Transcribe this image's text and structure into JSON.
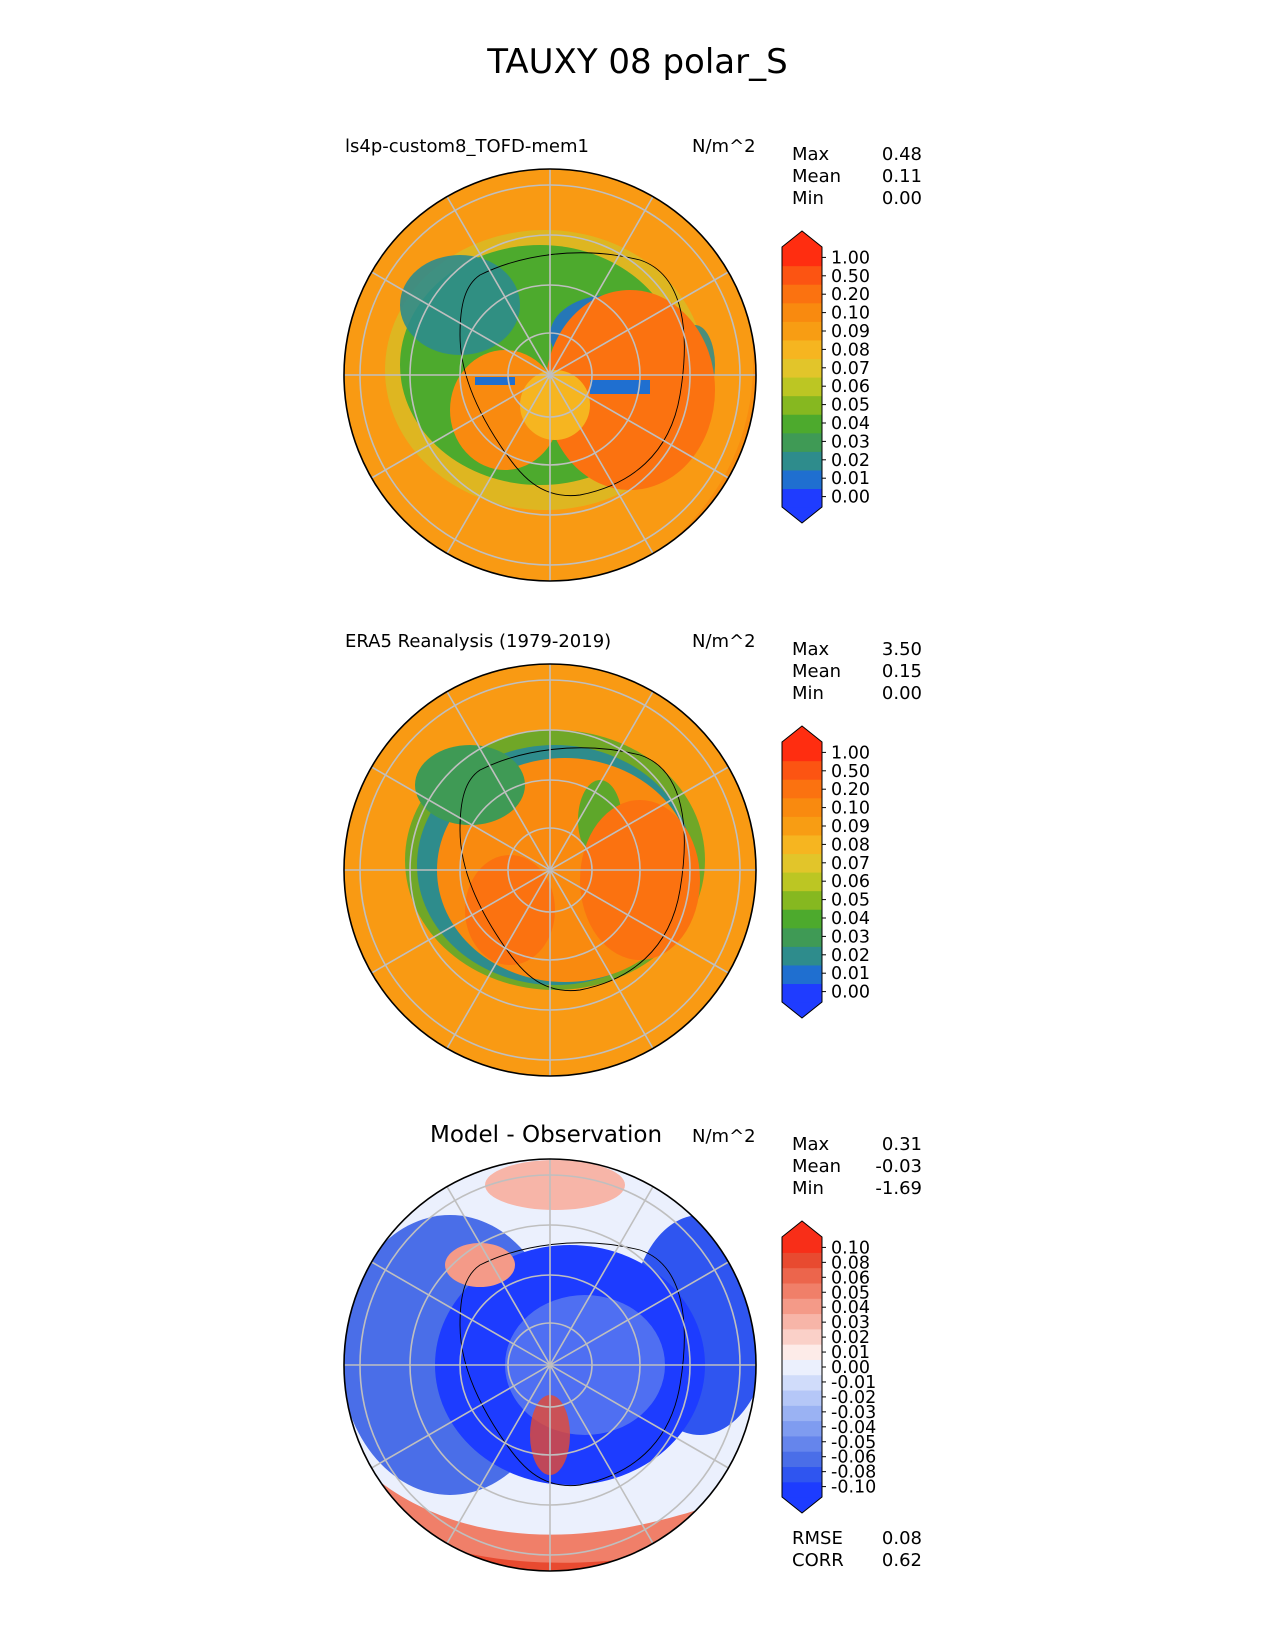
{
  "title": "TAUXY 08 polar_S",
  "panels": [
    {
      "id": "model",
      "label": "ls4p-custom8_TOFD-mem1",
      "units": "N/m^2",
      "stats": [
        {
          "name": "Max",
          "value": "0.48"
        },
        {
          "name": "Mean",
          "value": "0.11"
        },
        {
          "name": "Min",
          "value": "0.00"
        }
      ],
      "colorbar": {
        "ticks": [
          "1.00",
          "0.50",
          "0.20",
          "0.10",
          "0.09",
          "0.08",
          "0.07",
          "0.06",
          "0.05",
          "0.04",
          "0.03",
          "0.02",
          "0.01",
          "0.00"
        ],
        "colors": [
          "#1f3cff",
          "#1f6fd0",
          "#2e8c8c",
          "#3f9a55",
          "#4daa2d",
          "#86b820",
          "#bcc623",
          "#e2c52a",
          "#f6b520",
          "#f89d13",
          "#f98a0f",
          "#fb7210",
          "#fc5412",
          "#ff2d10"
        ]
      }
    },
    {
      "id": "obs",
      "label": "ERA5 Reanalysis (1979-2019)",
      "units": "N/m^2",
      "stats": [
        {
          "name": "Max",
          "value": "3.50"
        },
        {
          "name": "Mean",
          "value": "0.15"
        },
        {
          "name": "Min",
          "value": "0.00"
        }
      ],
      "colorbar": {
        "ticks": [
          "1.00",
          "0.50",
          "0.20",
          "0.10",
          "0.09",
          "0.08",
          "0.07",
          "0.06",
          "0.05",
          "0.04",
          "0.03",
          "0.02",
          "0.01",
          "0.00"
        ],
        "colors": [
          "#1f3cff",
          "#1f6fd0",
          "#2e8c8c",
          "#3f9a55",
          "#4daa2d",
          "#86b820",
          "#bcc623",
          "#e2c52a",
          "#f6b520",
          "#f89d13",
          "#f98a0f",
          "#fb7210",
          "#fc5412",
          "#ff2d10"
        ]
      }
    },
    {
      "id": "diff",
      "label": "Model - Observation",
      "units": "N/m^2",
      "stats": [
        {
          "name": "Max",
          "value": "0.31"
        },
        {
          "name": "Mean",
          "value": "-0.03"
        },
        {
          "name": "Min",
          "value": "-1.69"
        }
      ],
      "colorbar": {
        "ticks": [
          "0.10",
          "0.08",
          "0.06",
          "0.05",
          "0.04",
          "0.03",
          "0.02",
          "0.01",
          "0.00",
          "-0.01",
          "-0.02",
          "-0.03",
          "-0.04",
          "-0.05",
          "-0.06",
          "-0.08",
          "-0.10"
        ],
        "colors": [
          "#1d3cff",
          "#2f55f0",
          "#4a6ee8",
          "#6585ec",
          "#7f9cf0",
          "#9ab2f3",
          "#b5c7f7",
          "#d0dcfa",
          "#ebf0fd",
          "#fdebe8",
          "#fad0c8",
          "#f7b5a8",
          "#f49a88",
          "#f07f69",
          "#ec654c",
          "#e84a30",
          "#f82e18"
        ]
      },
      "metrics": [
        {
          "name": "RMSE",
          "value": "0.08"
        },
        {
          "name": "CORR",
          "value": "0.62"
        }
      ]
    }
  ],
  "chart_data": {
    "type": "heatmap",
    "title": "TAUXY 08 polar_S",
    "projection": "south polar stereographic",
    "units": "N/m^2",
    "maps": [
      {
        "name": "ls4p-custom8_TOFD-mem1",
        "max": 0.48,
        "mean": 0.11,
        "min": 0.0
      },
      {
        "name": "ERA5 Reanalysis (1979-2019)",
        "max": 3.5,
        "mean": 0.15,
        "min": 0.0
      },
      {
        "name": "Model - Observation",
        "max": 0.31,
        "mean": -0.03,
        "min": -1.69,
        "rmse": 0.08,
        "corr": 0.62
      }
    ],
    "levels_abs": [
      0.0,
      0.01,
      0.02,
      0.03,
      0.04,
      0.05,
      0.06,
      0.07,
      0.08,
      0.09,
      0.1,
      0.2,
      0.5,
      1.0
    ],
    "levels_diff": [
      -0.1,
      -0.08,
      -0.06,
      -0.05,
      -0.04,
      -0.03,
      -0.02,
      -0.01,
      0.0,
      0.01,
      0.02,
      0.03,
      0.04,
      0.05,
      0.06,
      0.08,
      0.1
    ]
  }
}
